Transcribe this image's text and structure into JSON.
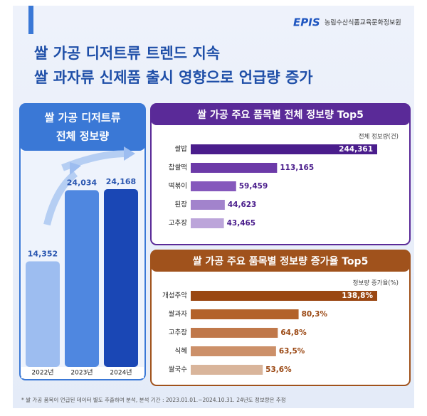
{
  "header": {
    "logo": "EPIS",
    "org": "농림수산식품교육문화정보원",
    "title": [
      "쌀 가공 디저트류 트렌드 지속",
      "쌀 과자류 신제품 출시 영향으로 언급량 증가"
    ]
  },
  "chart_data": [
    {
      "type": "bar",
      "orientation": "vertical",
      "title": [
        "쌀 가공 디저트류",
        "전체 정보량"
      ],
      "categories": [
        "2022년",
        "2023년",
        "2024년"
      ],
      "values": [
        14352,
        24034,
        24168
      ],
      "value_labels": [
        "14,352",
        "24,034",
        "24,168"
      ],
      "colors": [
        "#9dbdf0",
        "#4f87e0",
        "#1a47b5"
      ]
    },
    {
      "type": "bar",
      "orientation": "horizontal",
      "title": "쌀 가공 주요 품목별 전체 정보량 Top5",
      "unit_label": "전체 정보량(건)",
      "categories": [
        "쌀밥",
        "찹쌀떡",
        "떡볶이",
        "된장",
        "고추장"
      ],
      "values": [
        244361,
        113165,
        59459,
        44623,
        43465
      ],
      "value_labels": [
        "244,361",
        "113,165",
        "59,459",
        "44,623",
        "43,465"
      ],
      "colors": [
        "#4a1d8c",
        "#6c3aa8",
        "#8558bc",
        "#a283cc",
        "#bca5da"
      ]
    },
    {
      "type": "bar",
      "orientation": "horizontal",
      "title": "쌀 가공 주요 품목별 정보량 증가율 Top5",
      "unit_label": "정보량 증가율(%)",
      "categories": [
        "개성주악",
        "쌀과자",
        "고추장",
        "식혜",
        "쌀국수"
      ],
      "values": [
        138.8,
        80.3,
        64.8,
        63.5,
        53.6
      ],
      "value_labels": [
        "138,8%",
        "80,3%",
        "64,8%",
        "63,5%",
        "53,6%"
      ],
      "colors": [
        "#9a4712",
        "#b3622a",
        "#c0784a",
        "#cc9069",
        "#d9b59b"
      ]
    }
  ],
  "footnote": "* 쌀 가공 품목이 언급된 데이터 별도 추출하여 분석, 분석 기간 : 2023.01.01.~2024.10.31. 24년도 정보량은 추정"
}
